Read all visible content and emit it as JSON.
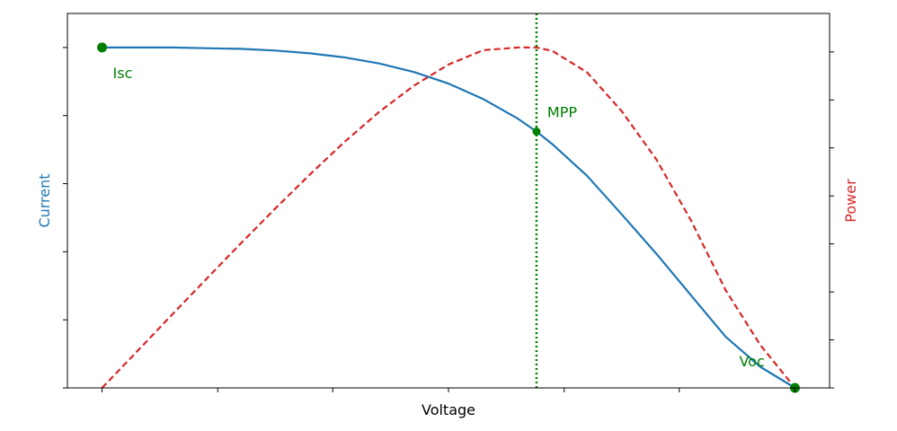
{
  "chart_data": {
    "type": "line",
    "xlabel": "Voltage",
    "ylabel_left": "Current",
    "ylabel_right": "Power",
    "xlim": [
      -0.05,
      1.05
    ],
    "ylim_left": [
      0,
      1.1
    ],
    "ylim_right": [
      0,
      1.1
    ],
    "tick_labels_visible": false,
    "grid": false,
    "colors": {
      "current": "#1f77b4",
      "power": "#d62728",
      "markers": "#008000"
    },
    "series": [
      {
        "axis": "left",
        "style": "solid",
        "x": [
          0,
          0.05,
          0.1,
          0.15,
          0.2,
          0.25,
          0.3,
          0.35,
          0.4,
          0.45,
          0.5,
          0.55,
          0.6,
          0.627,
          0.65,
          0.7,
          0.75,
          0.8,
          0.85,
          0.9,
          0.95,
          1.0
        ],
        "values": [
          1.0,
          1.0,
          1.0,
          0.998,
          0.996,
          0.991,
          0.983,
          0.971,
          0.953,
          0.928,
          0.894,
          0.849,
          0.791,
          0.753,
          0.716,
          0.623,
          0.51,
          0.394,
          0.272,
          0.15,
          0.062,
          0.0
        ]
      },
      {
        "axis": "right",
        "style": "dashed",
        "x": [
          0,
          0.05,
          0.1,
          0.15,
          0.2,
          0.25,
          0.3,
          0.35,
          0.4,
          0.45,
          0.5,
          0.55,
          0.6,
          0.627,
          0.65,
          0.7,
          0.75,
          0.8,
          0.85,
          0.9,
          0.95,
          1.0
        ],
        "values": [
          0.0,
          0.106,
          0.213,
          0.319,
          0.424,
          0.527,
          0.627,
          0.723,
          0.811,
          0.888,
          0.95,
          0.992,
          1.0,
          1.0,
          0.99,
          0.927,
          0.813,
          0.671,
          0.492,
          0.287,
          0.126,
          0.0
        ]
      }
    ],
    "vline_x": 0.627,
    "points": [
      {
        "label": "Isc",
        "x": 0,
        "y": 1.0
      },
      {
        "label": "MPP",
        "x": 0.627,
        "y": 0.753
      },
      {
        "label": "Voc",
        "x": 1.0,
        "y": 0.0
      }
    ],
    "ticks": {
      "x": [
        0,
        0.167,
        0.333,
        0.5,
        0.667,
        0.833,
        1.0
      ],
      "y_left": [
        0,
        0.2,
        0.4,
        0.6,
        0.8,
        1.0
      ],
      "y_right": [
        0,
        0.141,
        0.282,
        0.423,
        0.564,
        0.705,
        0.846,
        0.987
      ]
    }
  }
}
